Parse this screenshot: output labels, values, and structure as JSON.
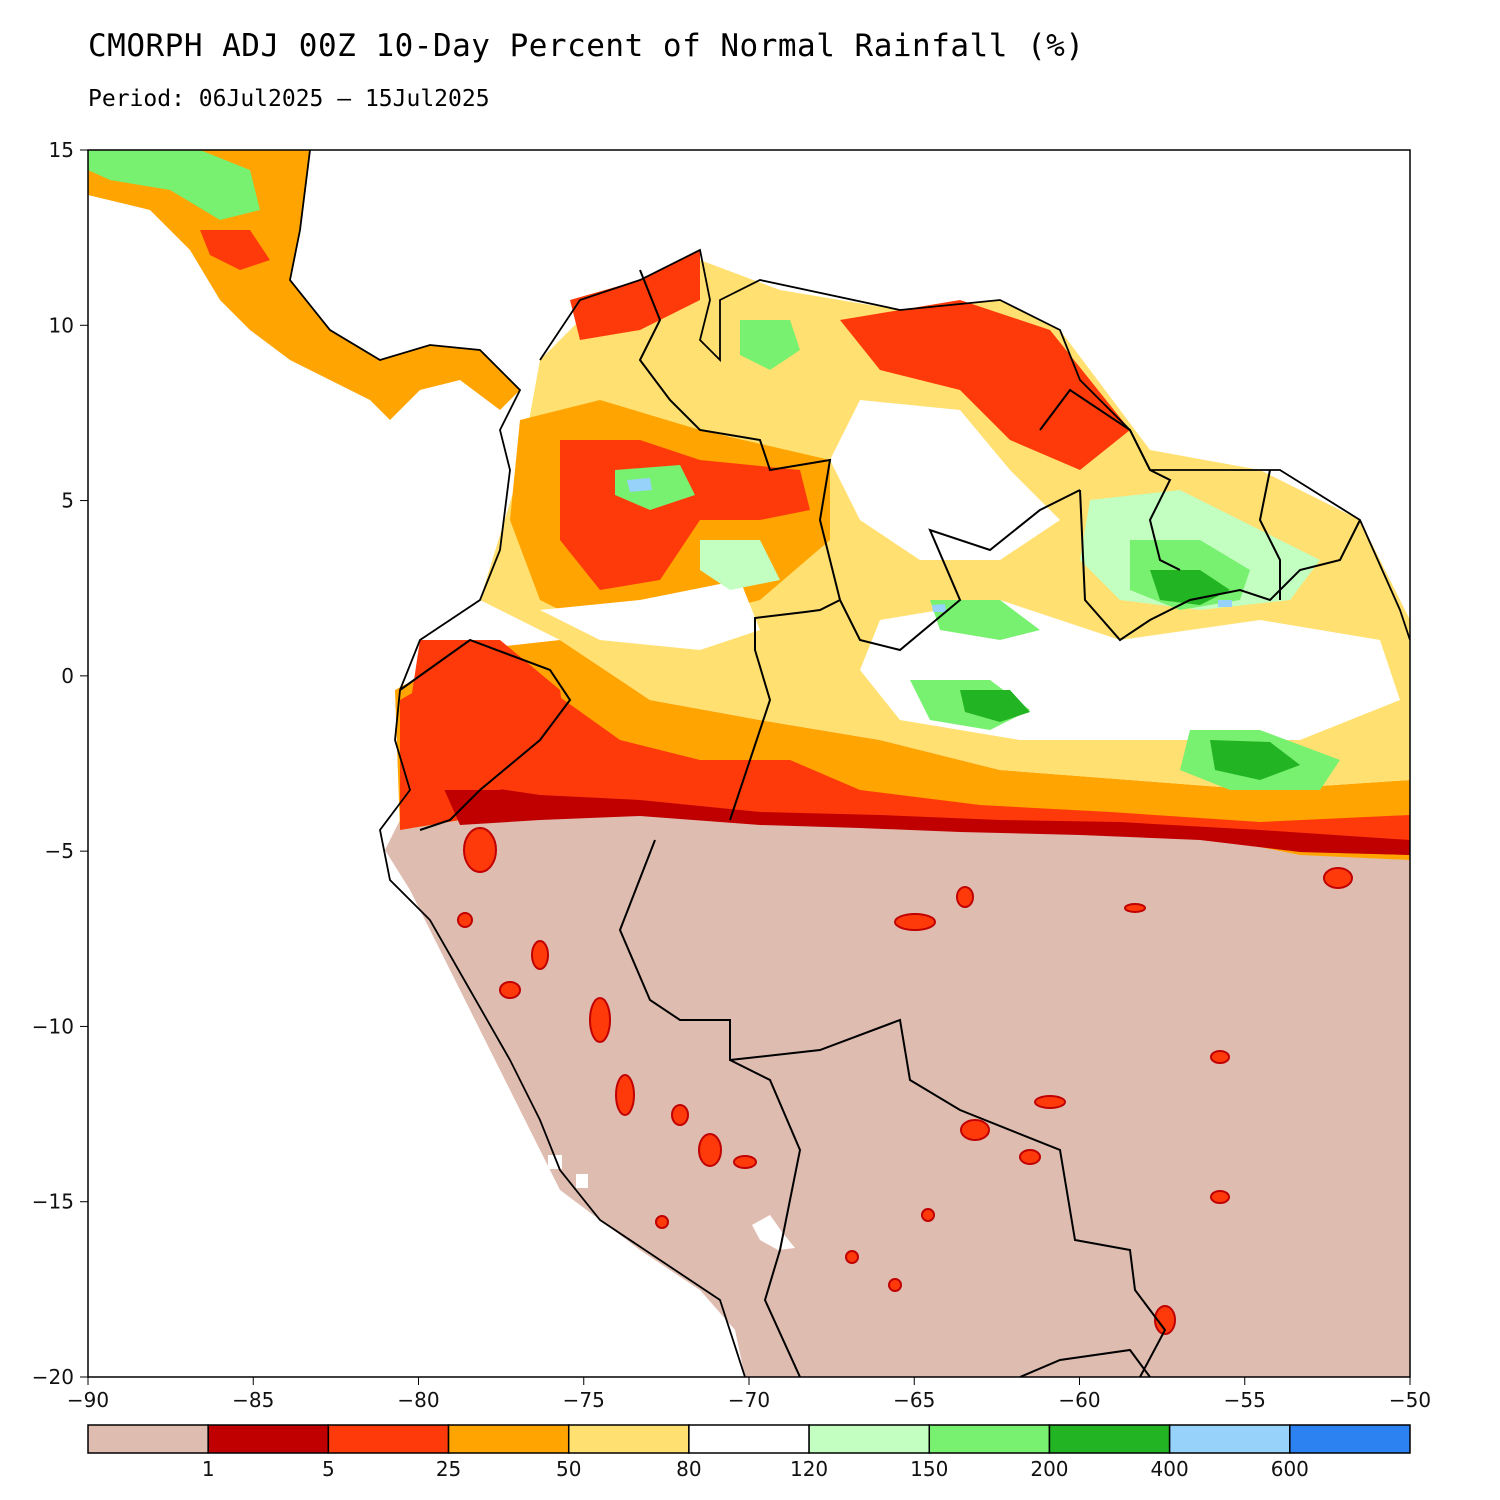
{
  "title": "CMORPH ADJ 00Z 10-Day Percent of Normal Rainfall (%)",
  "subtitle": "Period: 06Jul2025 – 15Jul2025",
  "map": {
    "lon_range": [
      -90,
      -50
    ],
    "lat_range": [
      -20,
      15
    ],
    "x_ticks": [
      "−90",
      "−85",
      "−80",
      "−75",
      "−70",
      "−65",
      "−60",
      "−55",
      "−50"
    ],
    "y_ticks": [
      "15",
      "10",
      "5",
      "0",
      "−5",
      "−10",
      "−15",
      "−20"
    ]
  },
  "legend": {
    "thresholds": [
      "1",
      "5",
      "25",
      "50",
      "80",
      "120",
      "150",
      "200",
      "400",
      "600"
    ],
    "colors": [
      "#dfbcb0",
      "#c00000",
      "#ff3a0a",
      "#ffa400",
      "#ffe070",
      "#ffffff",
      "#c2ffc0",
      "#78f070",
      "#22b422",
      "#96d2fa",
      "#2c82f0"
    ]
  }
}
